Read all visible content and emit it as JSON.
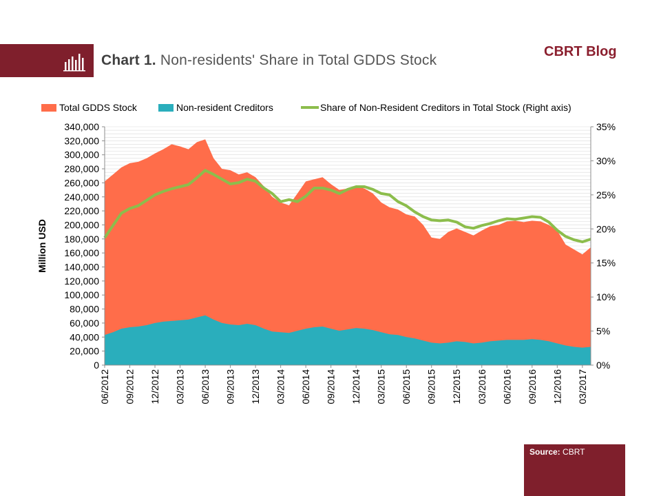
{
  "header": {
    "title_prefix": "Chart 1.",
    "title_text": " Non-residents' Share in Total GDDS Stock",
    "blog_name": "CBRT Blog",
    "icon": "bar-chart-icon"
  },
  "source": {
    "label": "Source:",
    "value": " CBRT"
  },
  "colors": {
    "brand": "#7f1f2c",
    "total_stock": "#ff6d4a",
    "non_resident": "#2aaebc",
    "share_line": "#8cbd4c",
    "gridline": "#d9d9d9"
  },
  "chart_data": {
    "type": "area",
    "ylabel": "Million USD",
    "ylim": [
      0,
      340000
    ],
    "y_ticks": [
      "0",
      "20,000",
      "40,000",
      "60,000",
      "80,000",
      "100,000",
      "120,000",
      "140,000",
      "160,000",
      "180,000",
      "200,000",
      "220,000",
      "240,000",
      "260,000",
      "280,000",
      "300,000",
      "320,000",
      "340,000"
    ],
    "y2lim": [
      0,
      35
    ],
    "y2_ticks": [
      "0%",
      "5%",
      "10%",
      "15%",
      "20%",
      "25%",
      "30%",
      "35%"
    ],
    "grid": true,
    "legend_position": "top",
    "x_labels": [
      "06/2012",
      "09/2012",
      "12/2012",
      "03/2013",
      "06/2013",
      "09/2013",
      "12/2013",
      "03/2014",
      "06/2014",
      "09/2014",
      "12/2014",
      "03/2015",
      "06/2015",
      "09/2015",
      "12/2015",
      "03/2016",
      "06/2016",
      "09/2016",
      "12/2016",
      "03/2017"
    ],
    "x": [
      "06/2012",
      "07/2012",
      "08/2012",
      "09/2012",
      "10/2012",
      "11/2012",
      "12/2012",
      "01/2013",
      "02/2013",
      "03/2013",
      "04/2013",
      "05/2013",
      "06/2013",
      "07/2013",
      "08/2013",
      "09/2013",
      "10/2013",
      "11/2013",
      "12/2013",
      "01/2014",
      "02/2014",
      "03/2014",
      "04/2014",
      "05/2014",
      "06/2014",
      "07/2014",
      "08/2014",
      "09/2014",
      "10/2014",
      "11/2014",
      "12/2014",
      "01/2015",
      "02/2015",
      "03/2015",
      "04/2015",
      "05/2015",
      "06/2015",
      "07/2015",
      "08/2015",
      "09/2015",
      "10/2015",
      "11/2015",
      "12/2015",
      "01/2016",
      "02/2016",
      "03/2016",
      "04/2016",
      "05/2016",
      "06/2016",
      "07/2016",
      "08/2016",
      "09/2016",
      "10/2016",
      "11/2016",
      "12/2016",
      "01/2017",
      "02/2017",
      "03/2017",
      "04/2017"
    ],
    "series": [
      {
        "name": "Total GDDS Stock",
        "axis": "left",
        "values": [
          262000,
          272000,
          282000,
          288000,
          290000,
          295000,
          302000,
          308000,
          315000,
          312000,
          308000,
          318000,
          322000,
          295000,
          280000,
          278000,
          272000,
          275000,
          268000,
          255000,
          240000,
          232000,
          228000,
          245000,
          262000,
          265000,
          268000,
          258000,
          250000,
          252000,
          255000,
          252000,
          245000,
          232000,
          225000,
          222000,
          215000,
          212000,
          200000,
          182000,
          180000,
          190000,
          195000,
          190000,
          185000,
          192000,
          198000,
          200000,
          205000,
          206000,
          204000,
          206000,
          205000,
          200000,
          192000,
          172000,
          165000,
          158000,
          168000
        ]
      },
      {
        "name": "Non-resident Creditors",
        "axis": "left",
        "values": [
          43000,
          47000,
          52000,
          54000,
          55000,
          57000,
          60000,
          62000,
          63000,
          64000,
          65000,
          68000,
          71000,
          65000,
          60000,
          58000,
          57000,
          59000,
          57000,
          52000,
          48000,
          47000,
          46000,
          49000,
          52000,
          54000,
          55000,
          52000,
          49000,
          51000,
          53000,
          52000,
          50000,
          47000,
          44000,
          43000,
          40000,
          38000,
          35000,
          32000,
          31000,
          32000,
          34000,
          33000,
          31000,
          32000,
          34000,
          35000,
          36000,
          36000,
          36000,
          37000,
          36000,
          34000,
          31000,
          28000,
          26000,
          25000,
          26000
        ]
      },
      {
        "name": "Share of Non-Resident  Creditors in Total Stock (Right axis)",
        "axis": "right",
        "values": [
          18.7,
          20.5,
          22.3,
          23.0,
          23.4,
          24.2,
          25.0,
          25.5,
          25.9,
          26.2,
          26.5,
          27.5,
          28.6,
          28.0,
          27.3,
          26.6,
          26.8,
          27.3,
          27.0,
          26.0,
          25.2,
          24.0,
          24.3,
          24.0,
          24.8,
          26.0,
          26.0,
          25.7,
          25.2,
          25.8,
          26.2,
          26.2,
          25.8,
          25.2,
          25.0,
          24.0,
          23.4,
          22.5,
          21.8,
          21.3,
          21.2,
          21.3,
          21.0,
          20.3,
          20.1,
          20.5,
          20.8,
          21.2,
          21.5,
          21.4,
          21.6,
          21.8,
          21.7,
          21.0,
          19.8,
          18.9,
          18.4,
          18.1,
          18.5
        ]
      }
    ]
  }
}
